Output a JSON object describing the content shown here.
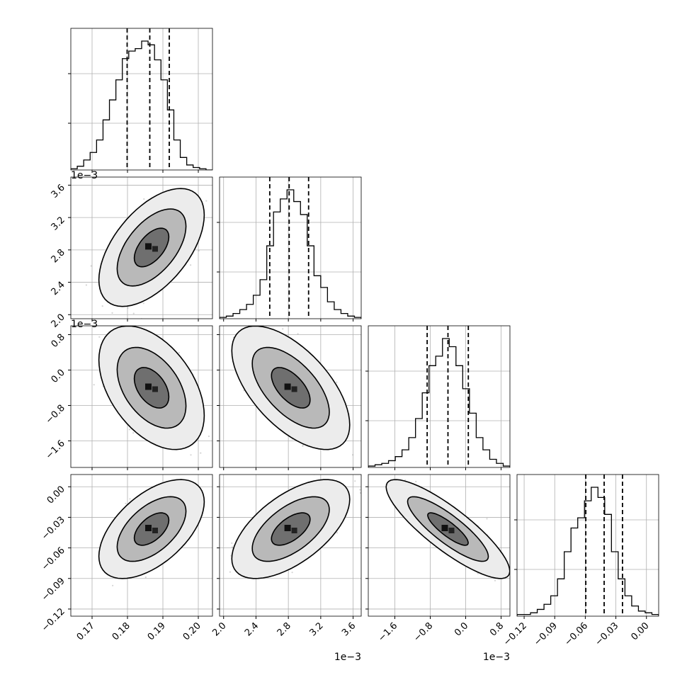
{
  "chart_data": {
    "type": "corner",
    "grid": true,
    "parameters": [
      {
        "range": [
          0.164,
          0.204
        ],
        "ticks": [
          0.17,
          0.18,
          0.19,
          0.2
        ],
        "tick_labels": [
          "0.17",
          "0.18",
          "0.19",
          "0.20"
        ],
        "offset_label": "",
        "quantiles": [
          0.1799,
          0.1863,
          0.1918
        ],
        "mean": 0.1868,
        "std": 0.0049,
        "hist_counts": [
          1,
          3,
          8,
          14,
          24,
          40,
          56,
          72,
          89,
          95,
          97,
          103,
          100,
          88,
          72,
          48,
          24,
          10,
          4,
          2,
          1,
          0
        ]
      },
      {
        "range": [
          1.95,
          3.7
        ],
        "ticks": [
          2.0,
          2.4,
          2.8,
          3.2,
          3.6
        ],
        "tick_labels": [
          "2.0",
          "2.4",
          "2.8",
          "3.2",
          "3.6"
        ],
        "offset_label": "1e−3",
        "quantiles": [
          2.57,
          2.81,
          3.05
        ],
        "mean": 2.83,
        "std": 0.24,
        "hist_counts": [
          1,
          2,
          4,
          7,
          11,
          18,
          30,
          56,
          82,
          92,
          99,
          90,
          80,
          56,
          33,
          24,
          13,
          7,
          4,
          2,
          1
        ]
      },
      {
        "range": [
          -2.2,
          1.0
        ],
        "ticks": [
          -1.6,
          -0.8,
          0.0,
          0.8
        ],
        "tick_labels": [
          "−1.6",
          "−0.8",
          "0.0",
          "0.8"
        ],
        "offset_label": "1e−3",
        "quantiles": [
          -0.87,
          -0.4,
          0.06
        ],
        "mean": -0.4,
        "std": 0.46,
        "hist_counts": [
          1,
          2,
          3,
          5,
          8,
          13,
          22,
          36,
          55,
          75,
          82,
          95,
          89,
          75,
          58,
          40,
          22,
          13,
          6,
          3,
          1
        ]
      },
      {
        "range": [
          -0.127,
          0.012
        ],
        "ticks": [
          -0.12,
          -0.09,
          -0.06,
          -0.03,
          0.0
        ],
        "tick_labels": [
          "−0.12",
          "−0.09",
          "−0.06",
          "−0.03",
          "0.00"
        ],
        "offset_label": "",
        "quantiles": [
          -0.0595,
          -0.0415,
          -0.0235
        ],
        "mean": -0.0415,
        "std": 0.016,
        "hist_counts": [
          1,
          1,
          2,
          4,
          7,
          12,
          22,
          38,
          52,
          58,
          68,
          76,
          70,
          60,
          38,
          22,
          12,
          6,
          3,
          2,
          1
        ]
      }
    ],
    "correlations": [
      [
        1.0,
        0.55,
        -0.45,
        0.55
      ],
      [
        0.55,
        1.0,
        -0.6,
        0.6
      ],
      [
        -0.45,
        -0.6,
        1.0,
        -0.85
      ],
      [
        0.55,
        0.6,
        -0.85,
        1.0
      ]
    ],
    "contour_levels": [
      0.39,
      0.86,
      0.99
    ]
  }
}
